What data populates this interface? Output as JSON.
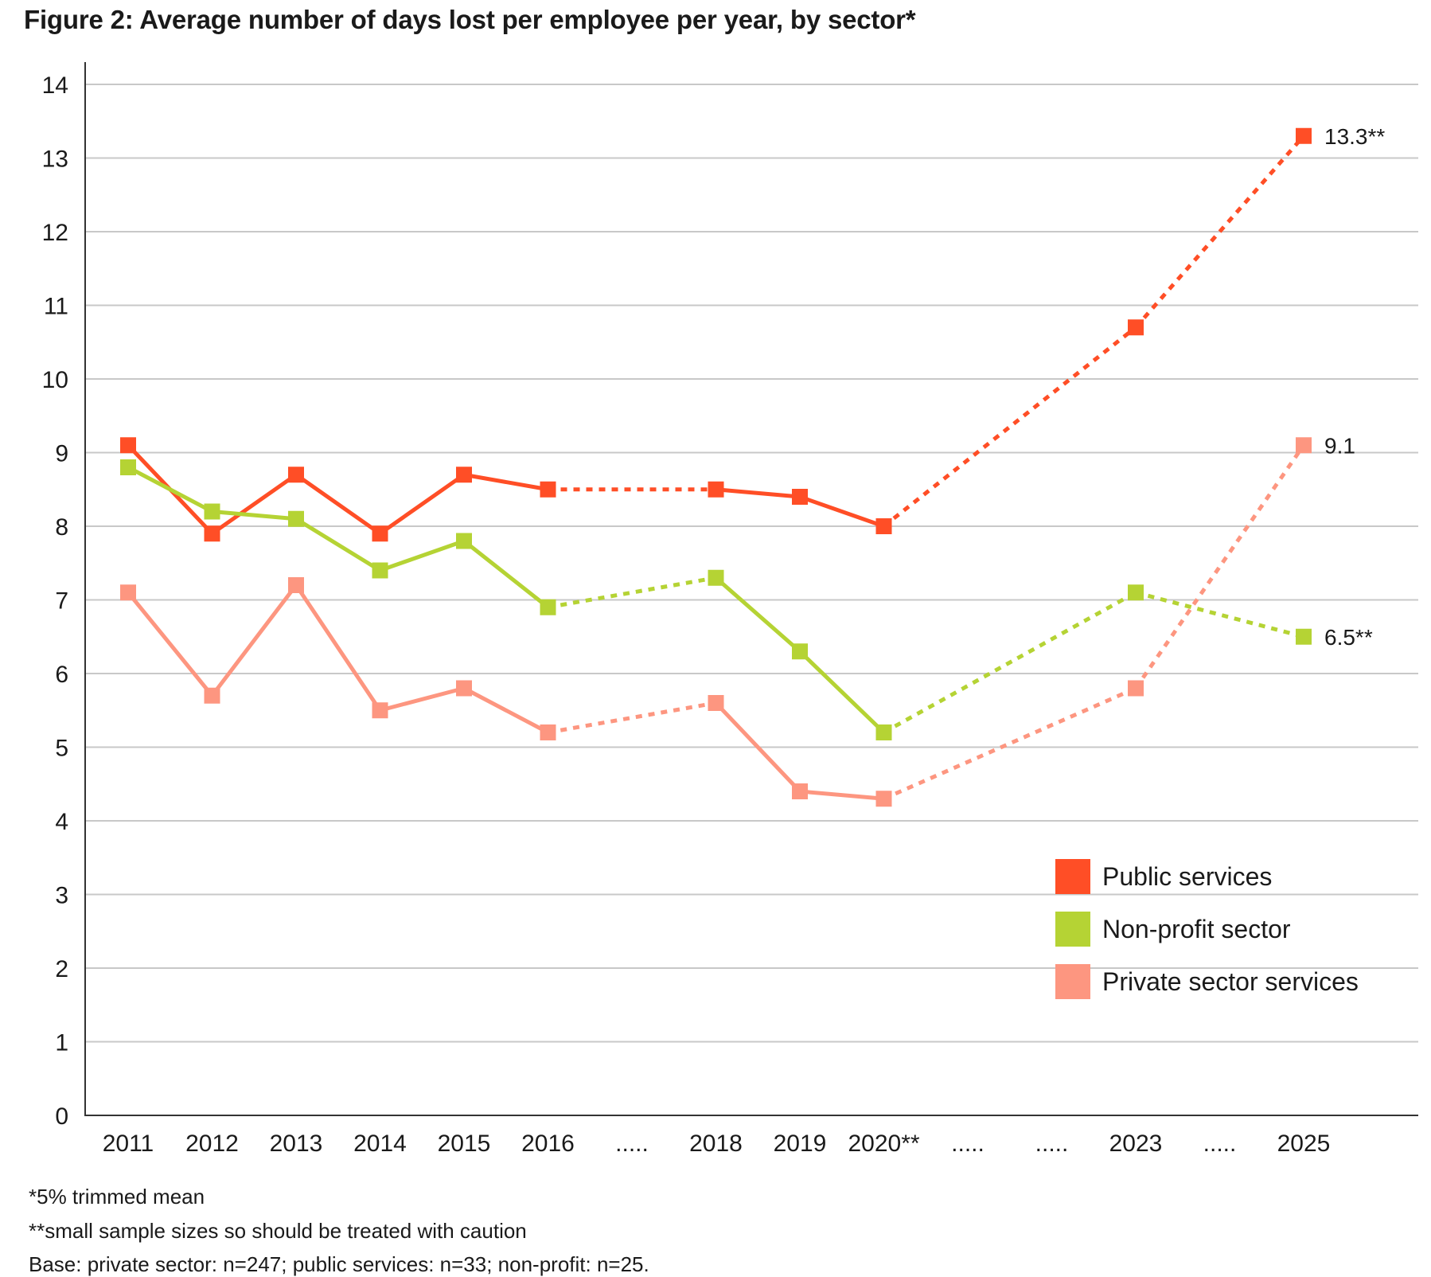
{
  "chart_data": {
    "type": "line",
    "title": "Figure 2: Average number of days lost per employee per year, by sector*",
    "xlabel": "",
    "ylabel": "",
    "ylim": [
      0,
      14
    ],
    "y_ticks": [
      "0",
      "1",
      "2",
      "3",
      "4",
      "5",
      "6",
      "7",
      "8",
      "9",
      "10",
      "11",
      "12",
      "13",
      "14"
    ],
    "grid": true,
    "categories": [
      "2011",
      "2012",
      "2013",
      "2014",
      "2015",
      "2016",
      ".....",
      "2018",
      "2019",
      "2020**",
      ".....",
      ".....",
      "2023",
      ".....",
      "2025"
    ],
    "series": [
      {
        "name": "Public services",
        "color": "#ff4e26",
        "values": [
          9.1,
          7.9,
          8.7,
          7.9,
          8.7,
          8.5,
          null,
          8.5,
          8.4,
          8.0,
          null,
          null,
          10.7,
          null,
          13.3
        ],
        "dotted_segments": [
          [
            5,
            7
          ],
          [
            9,
            12
          ],
          [
            12,
            14
          ]
        ],
        "end_label": "13.3**"
      },
      {
        "name": "Non-profit sector",
        "color": "#b5d334",
        "values": [
          8.8,
          8.2,
          8.1,
          7.4,
          7.8,
          6.9,
          null,
          7.3,
          6.3,
          5.2,
          null,
          null,
          7.1,
          null,
          6.5
        ],
        "dotted_segments": [
          [
            5,
            7
          ],
          [
            9,
            12
          ],
          [
            12,
            14
          ]
        ],
        "end_label": "6.5**"
      },
      {
        "name": "Private sector services",
        "color": "#fd9680",
        "values": [
          7.1,
          5.7,
          7.2,
          5.5,
          5.8,
          5.2,
          null,
          5.6,
          4.4,
          4.3,
          null,
          null,
          5.8,
          null,
          9.1
        ],
        "dotted_segments": [
          [
            5,
            7
          ],
          [
            9,
            12
          ],
          [
            12,
            14
          ]
        ],
        "end_label": "9.1"
      }
    ],
    "legend_position": "bottom-right"
  },
  "footnotes": {
    "note1": "*5% trimmed mean",
    "note2": "**small sample sizes so should be treated with caution",
    "base": "Base: private sector: n=247; public services: n=33; non-profit: n=25."
  }
}
